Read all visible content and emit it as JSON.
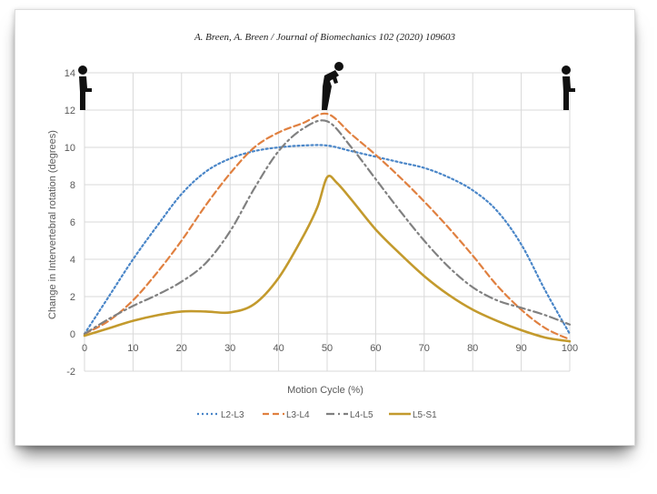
{
  "header": {
    "citation": "A. Breen, A. Breen / Journal of Biomechanics 102 (2020) 109603"
  },
  "icons": {
    "left": "standing-person-icon",
    "middle": "bending-person-icon",
    "right": "standing-person-icon"
  },
  "chart_data": {
    "type": "line",
    "title": "",
    "xlabel": "Motion Cycle (%)",
    "ylabel": "Change in Intervertebral rotation (degrees)",
    "xlim": [
      0,
      100
    ],
    "ylim": [
      -2,
      14
    ],
    "xticks": [
      0,
      10,
      20,
      30,
      40,
      50,
      60,
      70,
      80,
      90,
      100
    ],
    "yticks": [
      -2,
      0,
      2,
      4,
      6,
      8,
      10,
      12,
      14
    ],
    "grid": true,
    "legend_position": "bottom",
    "series": [
      {
        "name": "L2-L3",
        "color": "#4a86c8",
        "dash": "dotted",
        "x": [
          0,
          5,
          10,
          15,
          20,
          25,
          30,
          35,
          40,
          45,
          50,
          55,
          60,
          65,
          70,
          75,
          80,
          85,
          90,
          95,
          100
        ],
        "y": [
          0,
          2.0,
          4.0,
          5.8,
          7.5,
          8.7,
          9.4,
          9.8,
          10.0,
          10.1,
          10.1,
          9.8,
          9.5,
          9.2,
          8.9,
          8.4,
          7.7,
          6.6,
          4.8,
          2.3,
          0
        ]
      },
      {
        "name": "L3-L4",
        "color": "#e08040",
        "dash": "dashed",
        "x": [
          0,
          5,
          10,
          15,
          20,
          25,
          30,
          35,
          40,
          45,
          50,
          55,
          60,
          65,
          70,
          75,
          80,
          85,
          90,
          95,
          100
        ],
        "y": [
          0,
          0.7,
          1.8,
          3.3,
          5.0,
          6.9,
          8.6,
          10.0,
          10.8,
          11.3,
          11.8,
          10.7,
          9.6,
          8.4,
          7.1,
          5.7,
          4.2,
          2.6,
          1.3,
          0.3,
          -0.3
        ]
      },
      {
        "name": "L4-L5",
        "color": "#808080",
        "dash": "dashdot",
        "x": [
          0,
          5,
          10,
          15,
          20,
          25,
          30,
          35,
          40,
          45,
          50,
          55,
          60,
          65,
          70,
          75,
          80,
          85,
          90,
          95,
          100
        ],
        "y": [
          0,
          0.8,
          1.5,
          2.1,
          2.8,
          3.8,
          5.5,
          7.8,
          9.8,
          11.0,
          11.4,
          10.0,
          8.3,
          6.6,
          5.0,
          3.6,
          2.5,
          1.8,
          1.4,
          1.0,
          0.5
        ]
      },
      {
        "name": "L5-S1",
        "color": "#c39a2d",
        "dash": "solid",
        "x": [
          0,
          5,
          10,
          15,
          20,
          25,
          30,
          35,
          40,
          45,
          48,
          50,
          52,
          55,
          60,
          65,
          70,
          75,
          80,
          85,
          90,
          95,
          100
        ],
        "y": [
          -0.1,
          0.3,
          0.7,
          1.0,
          1.2,
          1.2,
          1.15,
          1.6,
          3.0,
          5.2,
          6.8,
          8.4,
          8.1,
          7.2,
          5.6,
          4.3,
          3.1,
          2.1,
          1.3,
          0.7,
          0.2,
          -0.2,
          -0.4
        ]
      }
    ]
  }
}
